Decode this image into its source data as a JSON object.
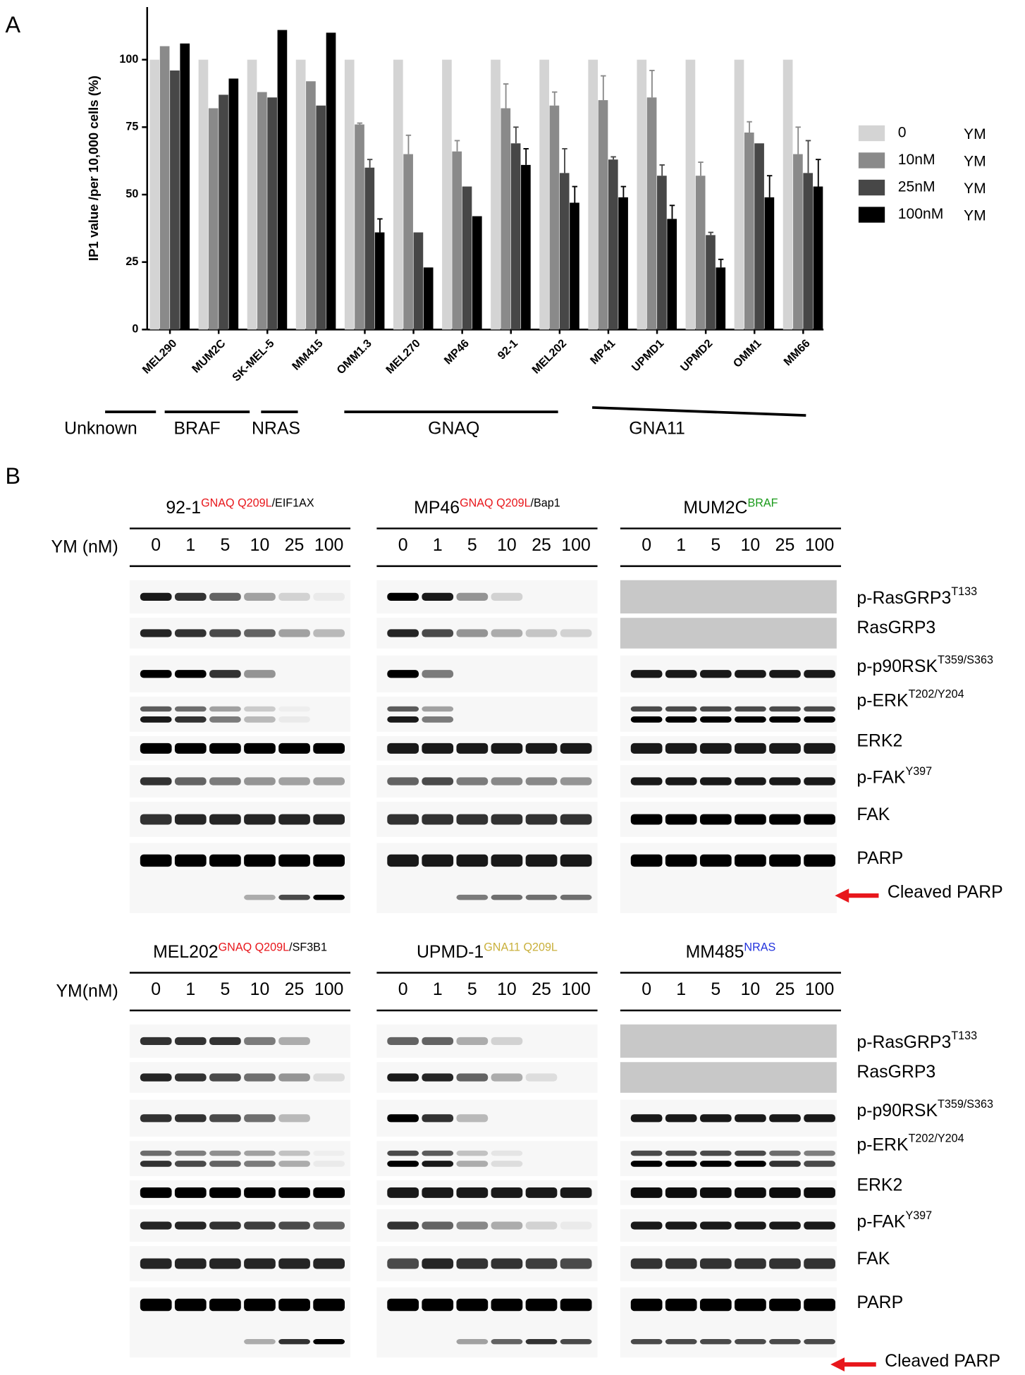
{
  "panel_labels": [
    "A",
    "B"
  ],
  "chart_data": {
    "type": "bar",
    "y_label": "IP1 value /per 10,000 cells (%)",
    "categories": [
      "MEL290",
      "MUM2C",
      "SK-MEL-5",
      "MM415",
      "OMM1.3",
      "MEL270",
      "MP46",
      "92-1",
      "MEL202",
      "MP41",
      "UPMD1",
      "UPMD2",
      "OMM1",
      "MM66"
    ],
    "series": [
      {
        "name": "0",
        "color": "#d4d4d4",
        "values": [
          100,
          100,
          100,
          100,
          100,
          100,
          100,
          100,
          100,
          100,
          100,
          100,
          100,
          100
        ]
      },
      {
        "name": "10nM",
        "color": "#8a8a8a",
        "values": [
          105,
          82,
          88,
          92,
          76,
          65,
          66,
          82,
          83,
          85,
          86,
          57,
          73,
          65
        ],
        "errors": [
          null,
          null,
          null,
          null,
          0.5,
          7,
          4,
          9,
          5,
          9,
          10,
          5,
          4,
          10
        ]
      },
      {
        "name": "25nM",
        "color": "#474747",
        "values": [
          96,
          87,
          86,
          83,
          60,
          36,
          53,
          69,
          58,
          63,
          57,
          35,
          69,
          58
        ],
        "errors": [
          null,
          null,
          null,
          null,
          3,
          null,
          null,
          6,
          9,
          1,
          4,
          1,
          null,
          12
        ]
      },
      {
        "name": "100nM",
        "color": "#000000",
        "values": [
          106,
          93,
          111,
          110,
          36,
          23,
          42,
          61,
          47,
          49,
          41,
          23,
          49,
          53
        ],
        "errors": [
          null,
          null,
          null,
          null,
          5,
          null,
          null,
          6,
          6,
          4,
          5,
          3,
          8,
          10
        ]
      }
    ],
    "legend_suffix": "YM",
    "ylim": [
      0,
      119.5
    ],
    "yticks": [
      0,
      25,
      50,
      75,
      100
    ],
    "groups": [
      {
        "label": "Unknown",
        "color": "#000000"
      },
      {
        "label": "BRAF",
        "color": "#1a9a1a"
      },
      {
        "label": "NRAS",
        "color": "#2233dd"
      },
      {
        "label": "GNAQ",
        "color": "#e8171c"
      },
      {
        "label": "GNA11",
        "color": "#c9b03c"
      }
    ]
  },
  "blots": {
    "doses": [
      0,
      1,
      5,
      10,
      25,
      100
    ],
    "proteins": [
      {
        "name": "p-RasGRP3",
        "site": "T133"
      },
      {
        "name": "RasGRP3"
      },
      {
        "name": "p-p90RSK",
        "site": "T359/S363"
      },
      {
        "name": "p-ERK",
        "site": "T202/Y204"
      },
      {
        "name": "ERK2"
      },
      {
        "name": "p-FAK",
        "site": "Y397"
      },
      {
        "name": "FAK"
      },
      {
        "name": "PARP"
      }
    ],
    "cleaved": "Cleaved PARP",
    "rows": [
      {
        "dose_label": "YM (nM)",
        "panels": [
          {
            "cell": "92-1",
            "mutation": "GNAQ Q209L",
            "mutation_color": "#e8171c",
            "extra": "/EIF1AX"
          },
          {
            "cell": "MP46",
            "mutation": "GNAQ Q209L",
            "mutation_color": "#e8171c",
            "extra": "/Bap1"
          },
          {
            "cell": "MUM2C",
            "mutation": "BRAF",
            "mutation_color": "#1a9a1a"
          }
        ]
      },
      {
        "dose_label": "YM(nM)",
        "panels": [
          {
            "cell": "MEL202",
            "mutation": "GNAQ Q209L",
            "mutation_color": "#e8171c",
            "extra": "/SF3B1"
          },
          {
            "cell": "UPMD-1",
            "mutation": "GNA11 Q209L",
            "mutation_color": "#c9b03c"
          },
          {
            "cell": "MM485",
            "mutation": "NRAS",
            "mutation_color": "#2233dd"
          }
        ]
      }
    ]
  }
}
